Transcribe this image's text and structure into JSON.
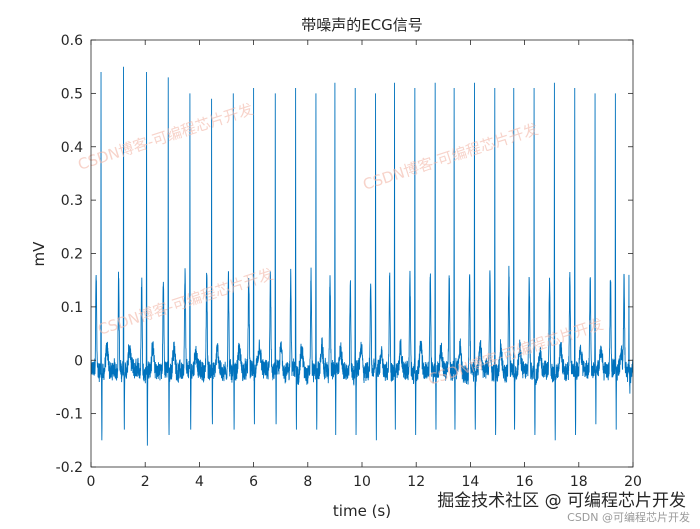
{
  "chart_data": {
    "type": "line",
    "title": "带噪声的ECG信号",
    "xlabel": "time (s)",
    "ylabel": "mV",
    "xlim": [
      0,
      20
    ],
    "ylim": [
      -0.2,
      0.6
    ],
    "xticks": [
      0,
      2,
      4,
      6,
      8,
      10,
      12,
      14,
      16,
      18,
      20
    ],
    "yticks": [
      -0.2,
      -0.1,
      0,
      0.1,
      0.2,
      0.3,
      0.4,
      0.5,
      0.6
    ],
    "xtick_labels": [
      "0",
      "2",
      "4",
      "6",
      "8",
      "10",
      "12",
      "14",
      "16",
      "18",
      "20"
    ],
    "ytick_labels": [
      "-0.2",
      "-0.1",
      "0",
      "0.1",
      "0.2",
      "0.3",
      "0.4",
      "0.5",
      "0.6"
    ],
    "grid": false,
    "series": [
      {
        "name": "ECG",
        "color": "#0072BD",
        "beats": [
          {
            "t": 0.37,
            "peak": 0.54,
            "trough": -0.15
          },
          {
            "t": 1.2,
            "peak": 0.55,
            "trough": -0.13
          },
          {
            "t": 2.05,
            "peak": 0.54,
            "trough": -0.16
          },
          {
            "t": 2.85,
            "peak": 0.53,
            "trough": -0.14
          },
          {
            "t": 3.65,
            "peak": 0.5,
            "trough": -0.13
          },
          {
            "t": 4.45,
            "peak": 0.49,
            "trough": -0.12
          },
          {
            "t": 5.25,
            "peak": 0.5,
            "trough": -0.13
          },
          {
            "t": 6.0,
            "peak": 0.51,
            "trough": -0.12
          },
          {
            "t": 6.8,
            "peak": 0.5,
            "trough": -0.12
          },
          {
            "t": 7.55,
            "peak": 0.51,
            "trough": -0.13
          },
          {
            "t": 8.3,
            "peak": 0.5,
            "trough": -0.13
          },
          {
            "t": 9.0,
            "peak": 0.52,
            "trough": -0.14
          },
          {
            "t": 9.75,
            "peak": 0.51,
            "trough": -0.14
          },
          {
            "t": 10.5,
            "peak": 0.5,
            "trough": -0.15
          },
          {
            "t": 11.2,
            "peak": 0.52,
            "trough": -0.13
          },
          {
            "t": 11.95,
            "peak": 0.51,
            "trough": -0.14
          },
          {
            "t": 12.7,
            "peak": 0.52,
            "trough": -0.13
          },
          {
            "t": 13.4,
            "peak": 0.51,
            "trough": -0.13
          },
          {
            "t": 14.15,
            "peak": 0.52,
            "trough": -0.13
          },
          {
            "t": 14.9,
            "peak": 0.51,
            "trough": -0.14
          },
          {
            "t": 15.6,
            "peak": 0.51,
            "trough": -0.13
          },
          {
            "t": 16.35,
            "peak": 0.51,
            "trough": -0.14
          },
          {
            "t": 17.1,
            "peak": 0.52,
            "trough": -0.15
          },
          {
            "t": 17.85,
            "peak": 0.51,
            "trough": -0.14
          },
          {
            "t": 18.6,
            "peak": 0.5,
            "trough": -0.12
          },
          {
            "t": 19.35,
            "peak": 0.5,
            "trough": -0.13
          },
          {
            "t": 19.85,
            "peak": 0.16,
            "trough": -0.05
          }
        ]
      }
    ]
  },
  "watermarks": {
    "overlay_text": "CSDN博客-可编程芯片开发",
    "footer_text": "掘金技术社区 @ 可编程芯片开发",
    "footer_credit": "CSDN @可编程芯片开发"
  }
}
